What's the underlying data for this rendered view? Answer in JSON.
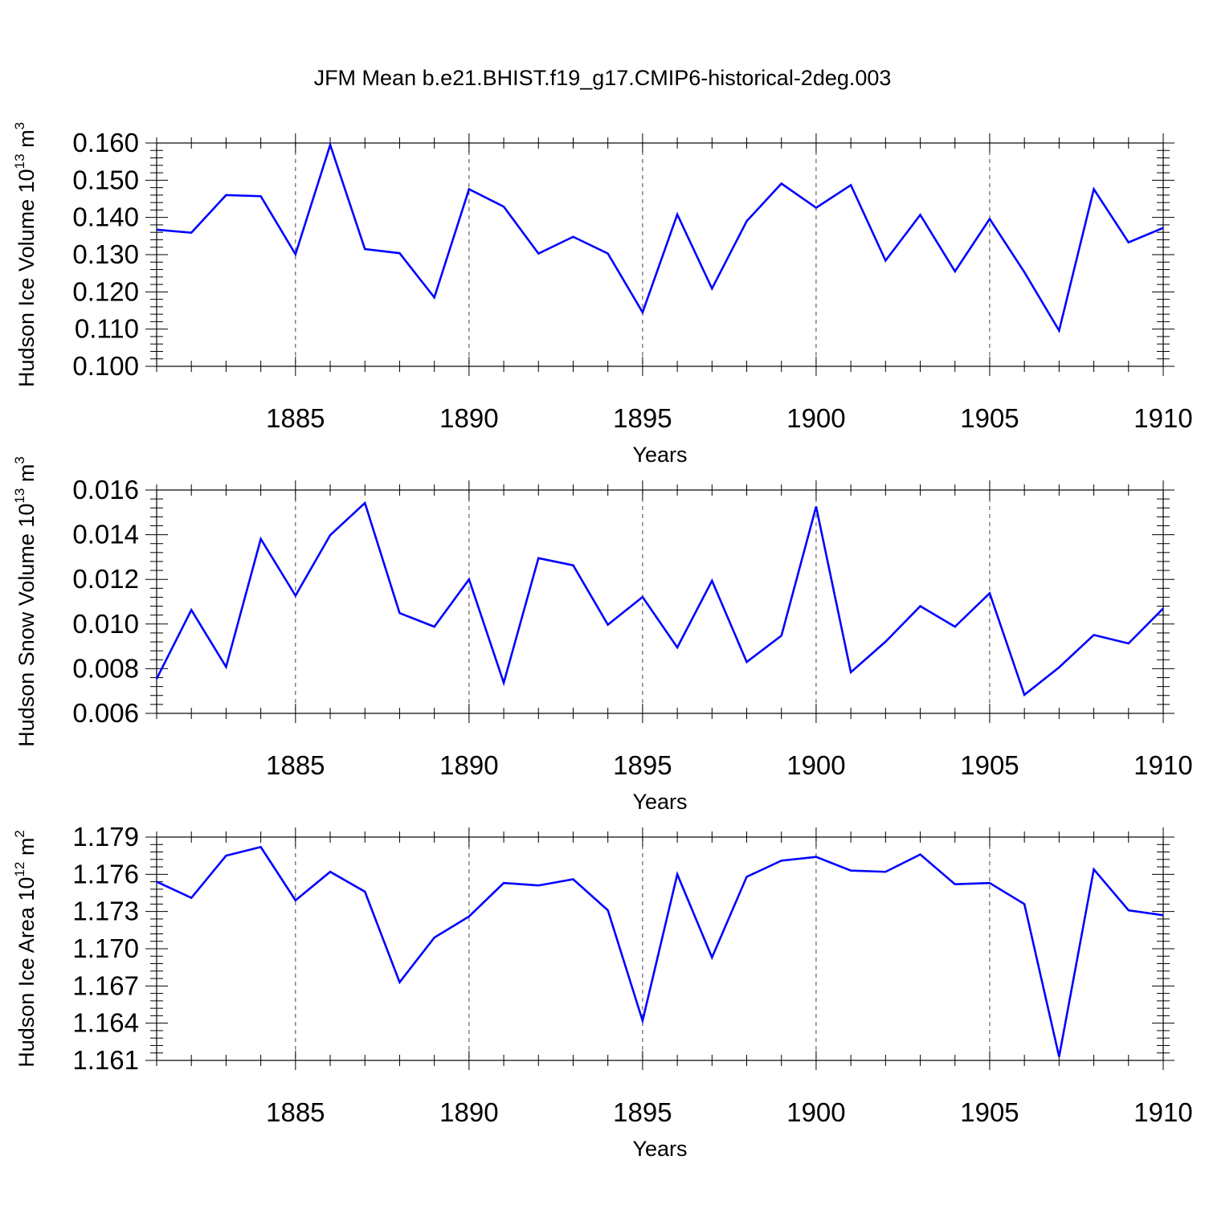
{
  "title": "JFM Mean b.e21.BHIST.f19_g17.CMIP6-historical-2deg.003",
  "colors": {
    "line": "#0000ff",
    "axis": "#000000",
    "grid": "#444444",
    "background": "#ffffff"
  },
  "chart_data": [
    {
      "type": "line",
      "title": "",
      "xlabel": "Years",
      "ylabel": {
        "prefix": "Hudson Ice Volume 10",
        "exponent": "13",
        "unit": " m",
        "unit_exponent": "3"
      },
      "xlim": [
        1881,
        1910
      ],
      "ylim": [
        0.1,
        0.16
      ],
      "x_ticks": [
        1885,
        1890,
        1895,
        1900,
        1905,
        1910
      ],
      "x_tick_labels": [
        "1885",
        "1890",
        "1895",
        "1900",
        "1905",
        "1910"
      ],
      "y_ticks": [
        0.1,
        0.11,
        0.12,
        0.13,
        0.14,
        0.15,
        0.16
      ],
      "y_tick_labels": [
        "0.100",
        "0.110",
        "0.120",
        "0.130",
        "0.140",
        "0.150",
        "0.160"
      ],
      "grid": "vertical dashed at major x ticks",
      "x": [
        1881,
        1882,
        1883,
        1884,
        1885,
        1886,
        1887,
        1888,
        1889,
        1890,
        1891,
        1892,
        1893,
        1894,
        1895,
        1896,
        1897,
        1898,
        1899,
        1900,
        1901,
        1902,
        1903,
        1904,
        1905,
        1906,
        1907,
        1908,
        1909,
        1910
      ],
      "series": [
        {
          "values": [
            0.1367,
            0.1359,
            0.146,
            0.1457,
            0.1301,
            0.1595,
            0.1315,
            0.1304,
            0.1185,
            0.1476,
            0.1429,
            0.1303,
            0.1348,
            0.1303,
            0.1145,
            0.1408,
            0.1209,
            0.139,
            0.1491,
            0.1426,
            0.1487,
            0.1284,
            0.1407,
            0.1255,
            0.1396,
            0.1253,
            0.1096,
            0.1476,
            0.1333,
            0.1372
          ]
        }
      ]
    },
    {
      "type": "line",
      "title": "",
      "xlabel": "Years",
      "ylabel": {
        "prefix": "Hudson Snow Volume 10",
        "exponent": "13",
        "unit": " m",
        "unit_exponent": "3"
      },
      "xlim": [
        1881,
        1910
      ],
      "ylim": [
        0.006,
        0.016
      ],
      "x_ticks": [
        1885,
        1890,
        1895,
        1900,
        1905,
        1910
      ],
      "x_tick_labels": [
        "1885",
        "1890",
        "1895",
        "1900",
        "1905",
        "1910"
      ],
      "y_ticks": [
        0.006,
        0.008,
        0.01,
        0.012,
        0.014,
        0.016
      ],
      "y_tick_labels": [
        "0.006",
        "0.008",
        "0.010",
        "0.012",
        "0.014",
        "0.016"
      ],
      "grid": "vertical dashed at major x ticks",
      "x": [
        1881,
        1882,
        1883,
        1884,
        1885,
        1886,
        1887,
        1888,
        1889,
        1890,
        1891,
        1892,
        1893,
        1894,
        1895,
        1896,
        1897,
        1898,
        1899,
        1900,
        1901,
        1902,
        1903,
        1904,
        1905,
        1906,
        1907,
        1908,
        1909,
        1910
      ],
      "series": [
        {
          "values": [
            0.00755,
            0.01063,
            0.00808,
            0.01381,
            0.01127,
            0.01398,
            0.01542,
            0.01049,
            0.00988,
            0.012,
            0.00737,
            0.01295,
            0.01263,
            0.00997,
            0.01121,
            0.00895,
            0.01194,
            0.0083,
            0.00948,
            0.01526,
            0.00784,
            0.00921,
            0.0108,
            0.00988,
            0.01138,
            0.00683,
            0.00806,
            0.00951,
            0.00913,
            0.0107
          ]
        }
      ]
    },
    {
      "type": "line",
      "title": "",
      "xlabel": "Years",
      "ylabel": {
        "prefix": "Hudson Ice Area 10",
        "exponent": "12",
        "unit": " m",
        "unit_exponent": "2"
      },
      "xlim": [
        1881,
        1910
      ],
      "ylim": [
        1.161,
        1.179
      ],
      "x_ticks": [
        1885,
        1890,
        1895,
        1900,
        1905,
        1910
      ],
      "x_tick_labels": [
        "1885",
        "1890",
        "1895",
        "1900",
        "1905",
        "1910"
      ],
      "y_ticks": [
        1.161,
        1.164,
        1.167,
        1.17,
        1.173,
        1.176,
        1.179
      ],
      "y_tick_labels": [
        "1.161",
        "1.164",
        "1.167",
        "1.170",
        "1.173",
        "1.176",
        "1.179"
      ],
      "grid": "vertical dashed at major x ticks",
      "x": [
        1881,
        1882,
        1883,
        1884,
        1885,
        1886,
        1887,
        1888,
        1889,
        1890,
        1891,
        1892,
        1893,
        1894,
        1895,
        1896,
        1897,
        1898,
        1899,
        1900,
        1901,
        1902,
        1903,
        1904,
        1905,
        1906,
        1907,
        1908,
        1909,
        1910
      ],
      "series": [
        {
          "values": [
            1.1754,
            1.1741,
            1.1775,
            1.1782,
            1.1739,
            1.1762,
            1.1746,
            1.1673,
            1.1709,
            1.1726,
            1.1753,
            1.1751,
            1.1756,
            1.1731,
            1.1642,
            1.176,
            1.1693,
            1.1758,
            1.1771,
            1.1774,
            1.1763,
            1.1762,
            1.1776,
            1.1752,
            1.1753,
            1.1736,
            1.1613,
            1.1764,
            1.1731,
            1.1727
          ]
        }
      ]
    }
  ]
}
